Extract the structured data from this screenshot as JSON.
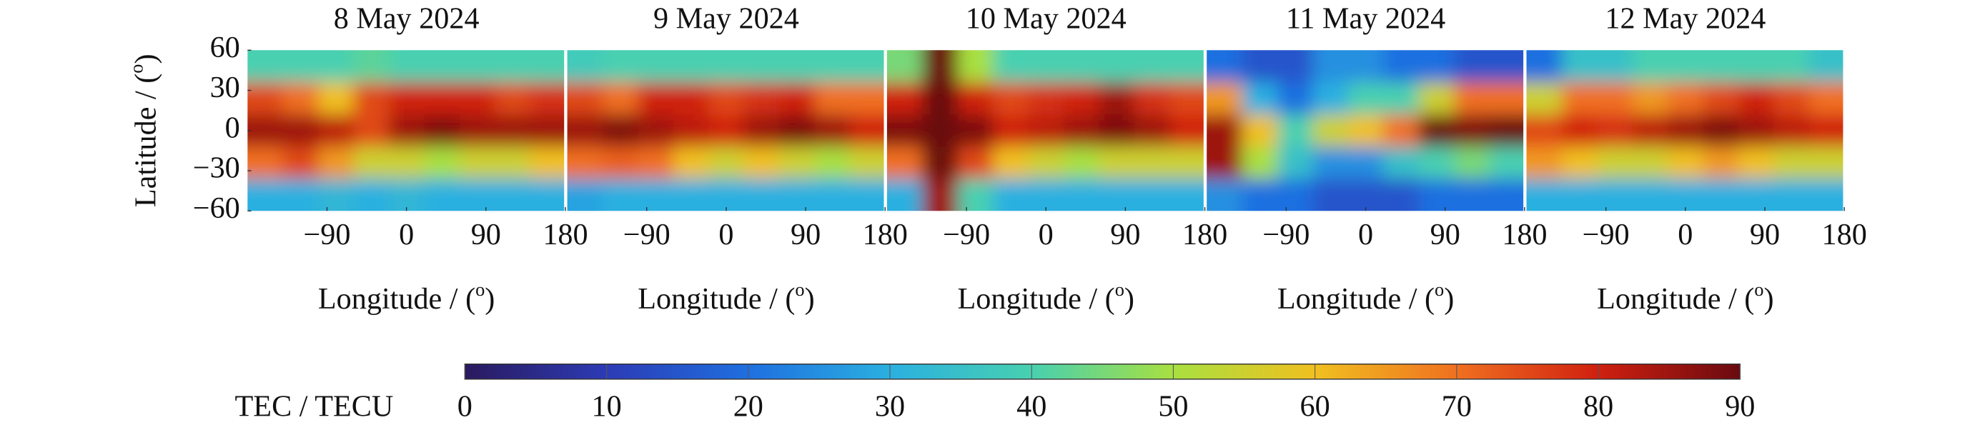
{
  "chart_data": [
    {
      "type": "heatmap",
      "title": "8 May 2024",
      "x_label": {
        "text": "Longitude / (",
        "sup": "o",
        "end": ")"
      },
      "y_label": {
        "text": "Latitude / (",
        "sup": "o",
        "end": ")"
      },
      "xlim": [
        -180,
        180
      ],
      "ylim": [
        -60,
        60
      ],
      "xticks": [
        {
          "value": -90,
          "label": "−90"
        },
        0,
        90,
        180
      ],
      "yticks": [
        {
          "value": -60,
          "label": "−60"
        },
        {
          "value": -30,
          "label": "−30"
        },
        0,
        30,
        60
      ],
      "lon": [
        -160,
        -120,
        -80,
        -40,
        0,
        40,
        80,
        120,
        160
      ],
      "lat": [
        48,
        24,
        0,
        -24,
        -48
      ],
      "values": [
        [
          40,
          40,
          40,
          42,
          40,
          40,
          40,
          40,
          40
        ],
        [
          75,
          70,
          60,
          75,
          80,
          80,
          80,
          75,
          78
        ],
        [
          85,
          85,
          82,
          75,
          85,
          88,
          85,
          85,
          85
        ],
        [
          70,
          75,
          65,
          55,
          55,
          50,
          55,
          55,
          60
        ],
        [
          30,
          30,
          32,
          30,
          32,
          30,
          30,
          30,
          30
        ]
      ]
    },
    {
      "type": "heatmap",
      "title": "9 May 2024",
      "x_label": {
        "text": "Longitude / (",
        "sup": "o",
        "end": ")"
      },
      "xlim": [
        -180,
        180
      ],
      "ylim": [
        -60,
        60
      ],
      "xticks": [
        {
          "value": -90,
          "label": "−90"
        },
        0,
        90,
        180
      ],
      "lon": [
        -160,
        -120,
        -80,
        -40,
        0,
        40,
        80,
        120,
        160
      ],
      "lat": [
        48,
        24,
        0,
        -24,
        -48
      ],
      "values": [
        [
          38,
          40,
          40,
          40,
          40,
          40,
          40,
          40,
          40
        ],
        [
          75,
          70,
          80,
          80,
          75,
          78,
          80,
          70,
          70
        ],
        [
          85,
          88,
          85,
          82,
          80,
          85,
          88,
          85,
          80
        ],
        [
          70,
          72,
          70,
          60,
          55,
          60,
          55,
          50,
          55
        ],
        [
          28,
          30,
          30,
          30,
          30,
          30,
          30,
          30,
          30
        ]
      ]
    },
    {
      "type": "heatmap",
      "title": "10 May 2024",
      "x_label": {
        "text": "Longitude / (",
        "sup": "o",
        "end": ")"
      },
      "xlim": [
        -180,
        180
      ],
      "ylim": [
        -60,
        60
      ],
      "xticks": [
        {
          "value": -90,
          "label": "−90"
        },
        0,
        90,
        180
      ],
      "lon": [
        -160,
        -120,
        -80,
        -40,
        0,
        40,
        80,
        120,
        160
      ],
      "lat": [
        48,
        24,
        0,
        -24,
        -48
      ],
      "values": [
        [
          45,
          90,
          50,
          40,
          40,
          40,
          40,
          40,
          40
        ],
        [
          80,
          92,
          80,
          75,
          78,
          80,
          85,
          78,
          75
        ],
        [
          88,
          92,
          88,
          80,
          82,
          85,
          88,
          85,
          80
        ],
        [
          70,
          90,
          75,
          60,
          55,
          50,
          55,
          55,
          55
        ],
        [
          30,
          85,
          40,
          30,
          30,
          30,
          30,
          30,
          30
        ]
      ]
    },
    {
      "type": "heatmap",
      "title": "11 May 2024",
      "x_label": {
        "text": "Longitude / (",
        "sup": "o",
        "end": ")"
      },
      "xlim": [
        -180,
        180
      ],
      "ylim": [
        -60,
        60
      ],
      "xticks": [
        {
          "value": -90,
          "label": "−90"
        },
        0,
        90,
        180
      ],
      "lon": [
        -160,
        -120,
        -80,
        -40,
        0,
        40,
        80,
        120,
        160
      ],
      "lat": [
        48,
        24,
        0,
        -24,
        -48
      ],
      "values": [
        [
          20,
          15,
          15,
          25,
          25,
          20,
          20,
          15,
          15
        ],
        [
          65,
          30,
          20,
          30,
          40,
          40,
          55,
          70,
          70
        ],
        [
          85,
          60,
          40,
          55,
          60,
          70,
          90,
          88,
          90
        ],
        [
          85,
          50,
          35,
          25,
          25,
          35,
          40,
          45,
          40
        ],
        [
          25,
          20,
          20,
          15,
          15,
          15,
          20,
          20,
          20
        ]
      ]
    },
    {
      "type": "heatmap",
      "title": "12 May 2024",
      "x_label": {
        "text": "Longitude / (",
        "sup": "o",
        "end": ")"
      },
      "xlim": [
        -180,
        180
      ],
      "ylim": [
        -60,
        60
      ],
      "xticks": [
        {
          "value": -90,
          "label": "−90"
        },
        0,
        90,
        180
      ],
      "lon": [
        -160,
        -120,
        -80,
        -40,
        0,
        40,
        80,
        120,
        160
      ],
      "lat": [
        48,
        24,
        0,
        -24,
        -48
      ],
      "values": [
        [
          20,
          35,
          35,
          40,
          40,
          40,
          40,
          40,
          35
        ],
        [
          55,
          70,
          70,
          65,
          70,
          75,
          80,
          75,
          70
        ],
        [
          75,
          80,
          78,
          82,
          85,
          88,
          85,
          82,
          80
        ],
        [
          65,
          60,
          55,
          55,
          60,
          65,
          60,
          55,
          55
        ],
        [
          30,
          30,
          30,
          30,
          30,
          30,
          30,
          30,
          30
        ]
      ]
    },
    {
      "type": "colorbar",
      "label": "TEC / TECU",
      "lim": [
        0,
        90
      ],
      "ticks": [
        0,
        10,
        20,
        30,
        40,
        50,
        60,
        70,
        80,
        90
      ],
      "colors": [
        "#2a1a5e",
        "#2c3bb5",
        "#1f6fe0",
        "#2ab0e0",
        "#48d0b0",
        "#a8e040",
        "#f0c020",
        "#f07020",
        "#d02010",
        "#6a0a10"
      ]
    }
  ]
}
